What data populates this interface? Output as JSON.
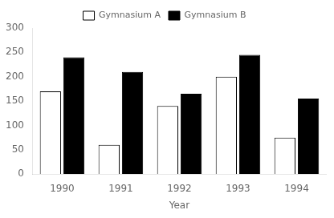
{
  "chart_data": {
    "type": "bar",
    "x_label": "Year",
    "categories": [
      "1990",
      "1991",
      "1992",
      "1993",
      "1994"
    ],
    "series": [
      {
        "name": "Gymnasium A",
        "color": "#ffffff",
        "values": [
          170,
          60,
          140,
          200,
          75
        ]
      },
      {
        "name": "Gymnasium B",
        "color": "#000000",
        "values": [
          240,
          210,
          165,
          245,
          155
        ]
      }
    ],
    "ylim": [
      0,
      300
    ],
    "yticks": [
      0,
      50,
      100,
      150,
      200,
      250,
      300
    ],
    "grid": false,
    "legend": "top"
  }
}
